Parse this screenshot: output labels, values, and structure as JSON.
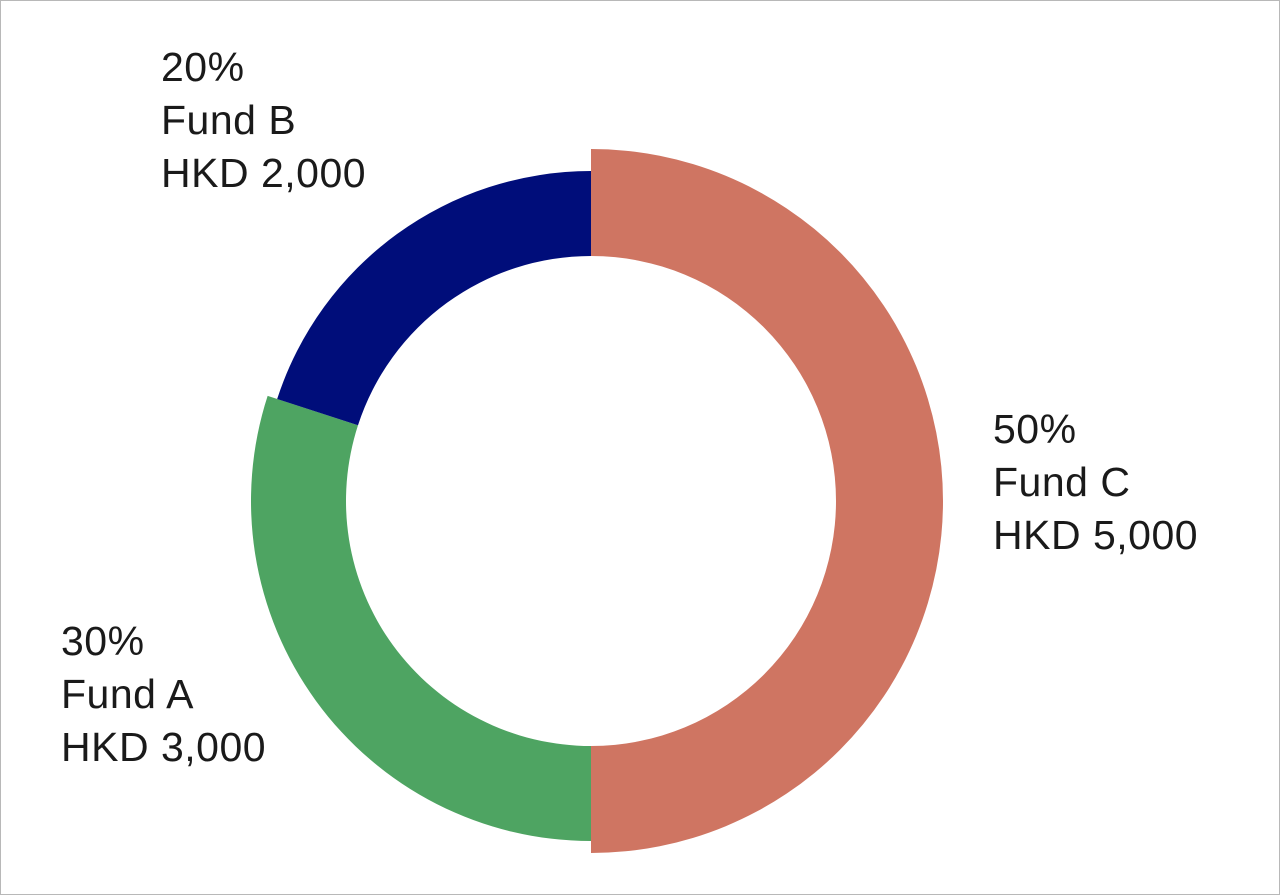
{
  "chart_data": {
    "type": "pie",
    "variant": "donut",
    "title": "",
    "slices": [
      {
        "key": "c",
        "name": "Fund C",
        "percent_label": "50%",
        "amount_label": "HKD 5,000",
        "value": 5000,
        "percent": 50,
        "color": "#cf7562"
      },
      {
        "key": "a",
        "name": "Fund A",
        "percent_label": "30%",
        "amount_label": "HKD 3,000",
        "value": 3000,
        "percent": 30,
        "color": "#4ea462"
      },
      {
        "key": "b",
        "name": "Fund B",
        "percent_label": "20%",
        "amount_label": "HKD 2,000",
        "value": 2000,
        "percent": 20,
        "color": "#000d7a"
      }
    ],
    "start_angle": "12 o'clock",
    "direction": "clockwise",
    "legend": "none"
  }
}
